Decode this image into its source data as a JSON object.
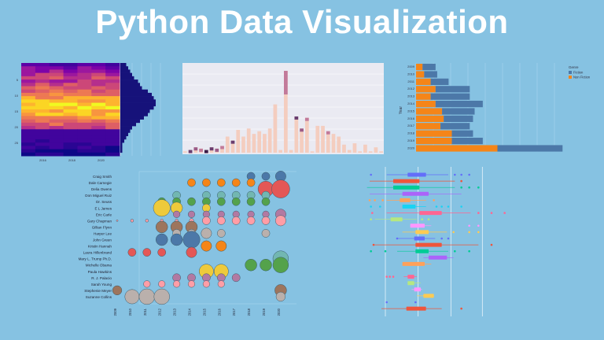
{
  "title": "Python Data Visualization",
  "colors": {
    "background": "#86c2e2",
    "title_text": "#ffffff"
  },
  "chart_data": [
    {
      "type": "heatmap",
      "title": "",
      "position": "top-left",
      "xlabel": "",
      "ylabel": "",
      "x_tick_labels": [
        "2016",
        "2018",
        "2020"
      ],
      "y_tick_labels": [
        "5",
        "10",
        "15",
        "20",
        "25"
      ],
      "colormap": "plasma",
      "marginal": "horizontal histogram on right (dark navy bars)",
      "marginal_values": [
        3,
        4,
        5,
        6,
        7,
        9,
        10,
        11,
        14,
        16,
        17,
        18,
        18,
        17,
        15,
        14,
        12,
        10,
        8,
        6,
        5,
        4,
        3,
        2,
        1,
        1,
        1,
        0
      ]
    },
    {
      "type": "bar",
      "title": "",
      "position": "top-center",
      "stacked": true,
      "background": "#eaeaf2",
      "values": [
        1,
        2,
        4,
        3,
        2,
        4,
        3,
        5,
        12,
        9,
        17,
        12,
        18,
        14,
        16,
        14,
        18,
        36,
        2,
        61,
        2,
        27,
        18,
        26,
        1,
        20,
        20,
        16,
        14,
        12,
        6,
        2,
        7,
        1,
        6,
        1,
        4,
        1
      ],
      "overlay_dark_segments": "top segments in purple/plum shades on selected bars",
      "grid": true
    },
    {
      "type": "bar",
      "orientation": "horizontal",
      "stacked": true,
      "position": "top-right",
      "ylabel": "Year",
      "categories": [
        "2009",
        "2010",
        "2011",
        "2012",
        "2013",
        "2014",
        "2015",
        "2016",
        "2017",
        "2018",
        "2019",
        "2020"
      ],
      "series": [
        {
          "name": "Non Fiction",
          "color": "#f58518",
          "values": [
            4,
            5,
            9,
            12,
            9,
            12,
            16,
            17,
            15,
            22,
            22,
            50
          ]
        },
        {
          "name": "Fiction",
          "color": "#4c78a8",
          "values": [
            8,
            8,
            11,
            21,
            24,
            29,
            20,
            18,
            18,
            13,
            19,
            40
          ]
        }
      ],
      "legend": {
        "title": "Genre",
        "entries": [
          "Fiction",
          "Non Fiction"
        ],
        "position": "right"
      },
      "grid": true
    },
    {
      "type": "scatter",
      "subtype": "bubble",
      "position": "bottom-left",
      "x_tick_labels": [
        "2009",
        "2010",
        "2011",
        "2012",
        "2013",
        "2014",
        "2015",
        "2016",
        "2017",
        "2018",
        "2019",
        "2020"
      ],
      "y_tick_labels": [
        "Craig Smith",
        "Dale Carnegie",
        "Delia Owens",
        "Don Miguel Ruiz",
        "Dr. Seuss",
        "E L James",
        "Eric Carle",
        "Gary Chapman",
        "Gillian Flynn",
        "Harper Lee",
        "John Green",
        "Kristin Hannah",
        "Laura Hillenbrand",
        "Mary L. Trump Ph.D.",
        "Michelle Obama",
        "Paula Hawkins",
        "R. J. Palacio",
        "Sarah Young",
        "Stephenie Meyer",
        "Suzanne Collins"
      ],
      "points": [
        {
          "author": "Craig Smith",
          "years": [
            2018,
            2019,
            2020
          ],
          "sizes": [
            6,
            6,
            8
          ],
          "color": "#4c78a8"
        },
        {
          "author": "Dale Carnegie",
          "years": [
            2014,
            2015,
            2016,
            2017,
            2018
          ],
          "sizes": [
            6,
            6,
            6,
            6,
            6
          ],
          "color": "#f58518"
        },
        {
          "author": "Delia Owens",
          "years": [
            2019,
            2020
          ],
          "sizes": [
            12,
            14
          ],
          "color": "#e45756"
        },
        {
          "author": "Don Miguel Ruiz",
          "years": [
            2013,
            2015,
            2016,
            2017,
            2018,
            2019
          ],
          "sizes": [
            6,
            6,
            6,
            6,
            6,
            6
          ],
          "color": "#72b7b2"
        },
        {
          "author": "Dr. Seuss",
          "years": [
            2012,
            2013,
            2014,
            2015,
            2016,
            2017,
            2018,
            2019
          ],
          "sizes": [
            6,
            6,
            6,
            6,
            6,
            6,
            6,
            6
          ],
          "color": "#54a24b"
        },
        {
          "author": "E L James",
          "years": [
            2012,
            2013,
            2015
          ],
          "sizes": [
            13,
            9,
            6
          ],
          "color": "#eeca3b"
        },
        {
          "author": "Eric Carle",
          "years": [
            2013,
            2014,
            2015,
            2016,
            2017,
            2018,
            2019,
            2020
          ],
          "sizes": [
            5,
            5,
            5,
            5,
            5,
            5,
            5,
            8
          ],
          "color": "#b279a2"
        },
        {
          "author": "Gary Chapman",
          "years": [
            2009,
            2010,
            2011,
            2012,
            2013,
            2014,
            2015,
            2016,
            2017,
            2018,
            2019,
            2020
          ],
          "sizes": [
            1,
            2,
            2,
            2,
            2,
            3,
            6,
            6,
            6,
            6,
            6,
            8
          ],
          "color": "#ff9da6"
        },
        {
          "author": "Gillian Flynn",
          "years": [
            2012,
            2013,
            2014
          ],
          "sizes": [
            9,
            9,
            9
          ],
          "color": "#9d755d"
        },
        {
          "author": "Harper Lee",
          "years": [
            2013,
            2014,
            2015,
            2016,
            2019
          ],
          "sizes": [
            6,
            6,
            8,
            6,
            6
          ],
          "color": "#bab0ac"
        },
        {
          "author": "John Green",
          "years": [
            2012,
            2013,
            2014
          ],
          "sizes": [
            9,
            9,
            13
          ],
          "color": "#4c78a8"
        },
        {
          "author": "Kristin Hannah",
          "years": [
            2015,
            2016
          ],
          "sizes": [
            8,
            8
          ],
          "color": "#f58518"
        },
        {
          "author": "Laura Hillenbrand",
          "years": [
            2010,
            2011,
            2012,
            2014
          ],
          "sizes": [
            6,
            6,
            6,
            8
          ],
          "color": "#e45756"
        },
        {
          "author": "Mary L. Trump Ph.D.",
          "years": [
            2020
          ],
          "sizes": [
            12
          ],
          "color": "#72b7b2"
        },
        {
          "author": "Michelle Obama",
          "years": [
            2018,
            2019,
            2020
          ],
          "sizes": [
            9,
            9,
            12
          ],
          "color": "#54a24b"
        },
        {
          "author": "Paula Hawkins",
          "years": [
            2015,
            2016
          ],
          "sizes": [
            11,
            11
          ],
          "color": "#eeca3b"
        },
        {
          "author": "R. J. Palacio",
          "years": [
            2013,
            2014,
            2015,
            2016,
            2017
          ],
          "sizes": [
            6,
            6,
            6,
            6,
            6
          ],
          "color": "#b279a2"
        },
        {
          "author": "Sarah Young",
          "years": [
            2011,
            2012,
            2013,
            2014,
            2015,
            2016
          ],
          "sizes": [
            5,
            5,
            5,
            5,
            5,
            5
          ],
          "color": "#ff9da6"
        },
        {
          "author": "Stephenie Meyer",
          "years": [
            2009,
            2010,
            2020
          ],
          "sizes": [
            7,
            1,
            9
          ],
          "color": "#9d755d"
        },
        {
          "author": "Suzanne Collins",
          "years": [
            2010,
            2011,
            2012,
            2020
          ],
          "sizes": [
            11,
            12,
            12,
            7
          ],
          "color": "#bab0ac"
        }
      ]
    },
    {
      "type": "box",
      "orientation": "horizontal",
      "position": "bottom-right",
      "rows": [
        {
          "color": "#636efa",
          "q1": 190,
          "q3": 260,
          "wmin": 110,
          "wmax": 345,
          "outliers": [
            50,
            370,
            395,
            425
          ]
        },
        {
          "color": "#ef553b",
          "q1": 135,
          "q3": 235,
          "wmin": 45,
          "wmax": 370,
          "outliers": [
            395
          ]
        },
        {
          "color": "#00cc96",
          "q1": 135,
          "q3": 235,
          "wmin": 35,
          "wmax": 370,
          "outliers": [
            395,
            425,
            460
          ]
        },
        {
          "color": "#ab63fa",
          "q1": 170,
          "q3": 270,
          "wmin": 45,
          "wmax": 395,
          "outliers": []
        },
        {
          "color": "#ffa15a",
          "q1": 160,
          "q3": 200,
          "wmin": 110,
          "wmax": 260,
          "outliers": [
            45,
            65,
            95,
            290
          ]
        },
        {
          "color": "#19d3f3",
          "q1": 170,
          "q3": 220,
          "wmin": 170,
          "wmax": 260,
          "outliers": [
            50,
            85,
            300,
            320,
            345,
            395
          ]
        },
        {
          "color": "#ff6692",
          "q1": 235,
          "q3": 320,
          "wmin": 110,
          "wmax": 430,
          "outliers": [
            55,
            460,
            510,
            560
          ]
        },
        {
          "color": "#b6e880",
          "q1": 125,
          "q3": 170,
          "wmin": 65,
          "wmax": 225,
          "outliers": [
            50,
            245,
            270
          ]
        },
        {
          "color": "#ff97ff",
          "q1": 200,
          "q3": 255,
          "wmin": 200,
          "wmax": 280,
          "outliers": [
            425,
            460
          ]
        },
        {
          "color": "#fecb52",
          "q1": 220,
          "q3": 270,
          "wmin": 170,
          "wmax": 340,
          "outliers": [
            365,
            425,
            460
          ]
        },
        {
          "color": "#636efa",
          "q1": 215,
          "q3": 255,
          "wmin": 150,
          "wmax": 295,
          "outliers": [
            150,
            320,
            345
          ]
        },
        {
          "color": "#ef553b",
          "q1": 220,
          "q3": 320,
          "wmin": 60,
          "wmax": 460,
          "outliers": [
            60,
            510
          ]
        },
        {
          "color": "#00cc96",
          "q1": 220,
          "q3": 270,
          "wmin": 150,
          "wmax": 345,
          "outliers": [
            50,
            105,
            370,
            425
          ]
        },
        {
          "color": "#ab63fa",
          "q1": 270,
          "q3": 340,
          "wmin": 250,
          "wmax": 365,
          "outliers": []
        },
        {
          "color": "#ffa15a",
          "q1": 170,
          "q3": 255,
          "wmin": 170,
          "wmax": 280,
          "outliers": []
        },
        {
          "color": "#19d3f3",
          "q1": 0,
          "q3": 0,
          "wmin": 0,
          "wmax": 0,
          "outliers": []
        },
        {
          "color": "#ff6692",
          "q1": 190,
          "q3": 215,
          "wmin": 175,
          "wmax": 225,
          "outliers": [
            110,
            122,
            135
          ]
        },
        {
          "color": "#b6e880",
          "q1": 190,
          "q3": 215,
          "wmin": 190,
          "wmax": 240,
          "outliers": []
        },
        {
          "color": "#ff97ff",
          "q1": 215,
          "q3": 240,
          "wmin": 205,
          "wmax": 245,
          "outliers": []
        },
        {
          "color": "#fecb52",
          "q1": 250,
          "q3": 290,
          "wmin": 225,
          "wmax": 290,
          "outliers": []
        },
        {
          "color": "#636efa",
          "q1": 0,
          "q3": 0,
          "wmin": 0,
          "wmax": 0,
          "outliers": [
            110,
            220
          ]
        },
        {
          "color": "#ef553b",
          "q1": 185,
          "q3": 260,
          "wmin": 90,
          "wmax": 320,
          "outliers": [
            395
          ]
        }
      ],
      "vlines": [
        105,
        230,
        355,
        475
      ]
    }
  ]
}
